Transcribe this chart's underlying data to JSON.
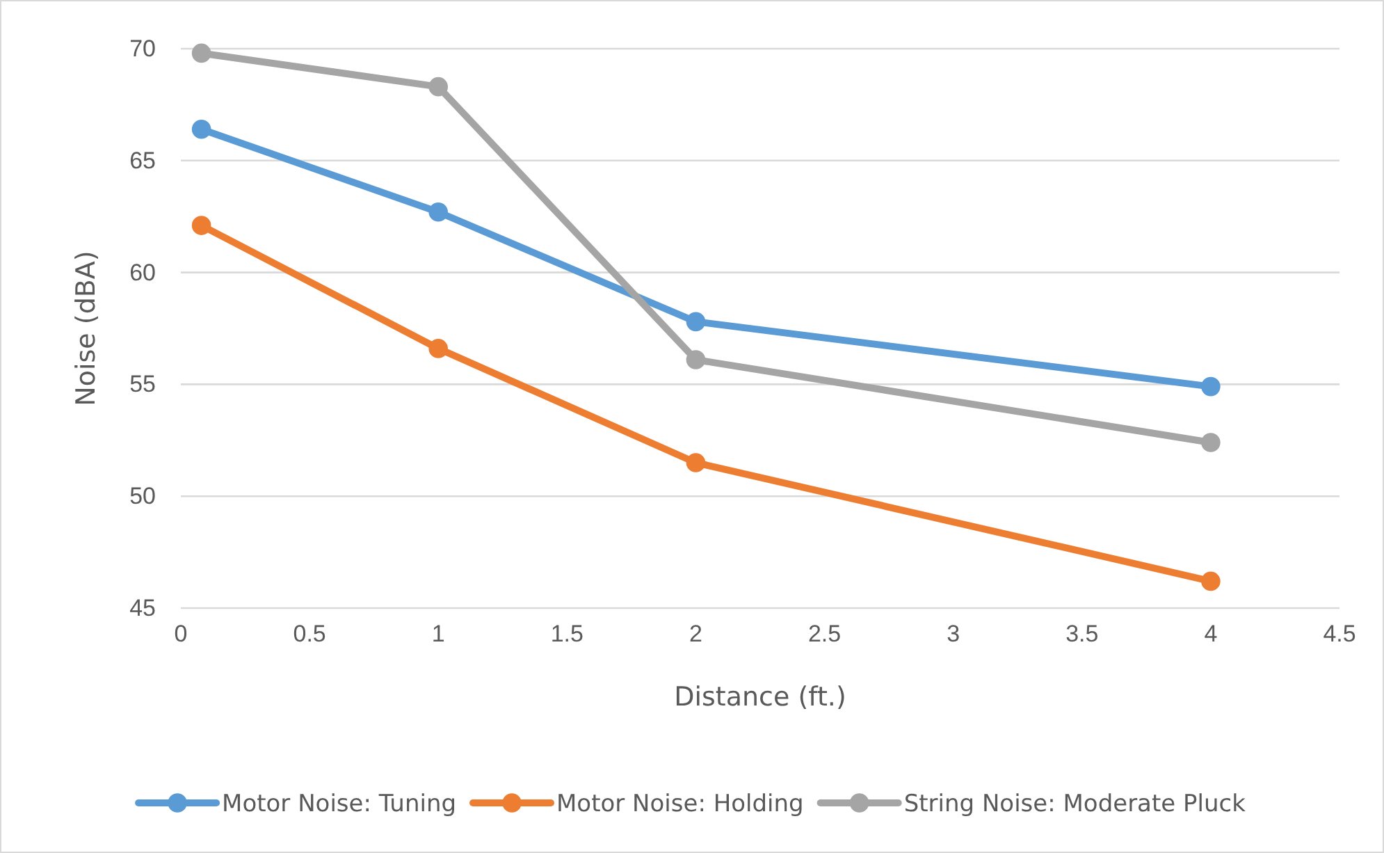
{
  "chart_data": {
    "type": "line",
    "xlabel": "Distance (ft.)",
    "ylabel": "Noise (dBA)",
    "x": [
      0.08,
      1,
      2,
      4
    ],
    "series": [
      {
        "name": "Motor Noise: Tuning",
        "color": "#5b9bd5",
        "values": [
          66.4,
          62.7,
          57.8,
          54.9
        ]
      },
      {
        "name": "Motor Noise: Holding",
        "color": "#ed7d31",
        "values": [
          62.1,
          56.6,
          51.5,
          46.2
        ]
      },
      {
        "name": "String Noise: Moderate Pluck",
        "color": "#a5a5a5",
        "values": [
          69.8,
          68.3,
          56.1,
          52.4
        ]
      }
    ],
    "xlim": [
      0,
      4.5
    ],
    "xticks": [
      0,
      0.5,
      1,
      1.5,
      2,
      2.5,
      3,
      3.5,
      4,
      4.5
    ],
    "ylim": [
      45,
      70
    ],
    "yticks": [
      45,
      50,
      55,
      60,
      65,
      70
    ],
    "grid": "y",
    "legend": "bottom",
    "marker": "circle",
    "line_style": "solid"
  }
}
